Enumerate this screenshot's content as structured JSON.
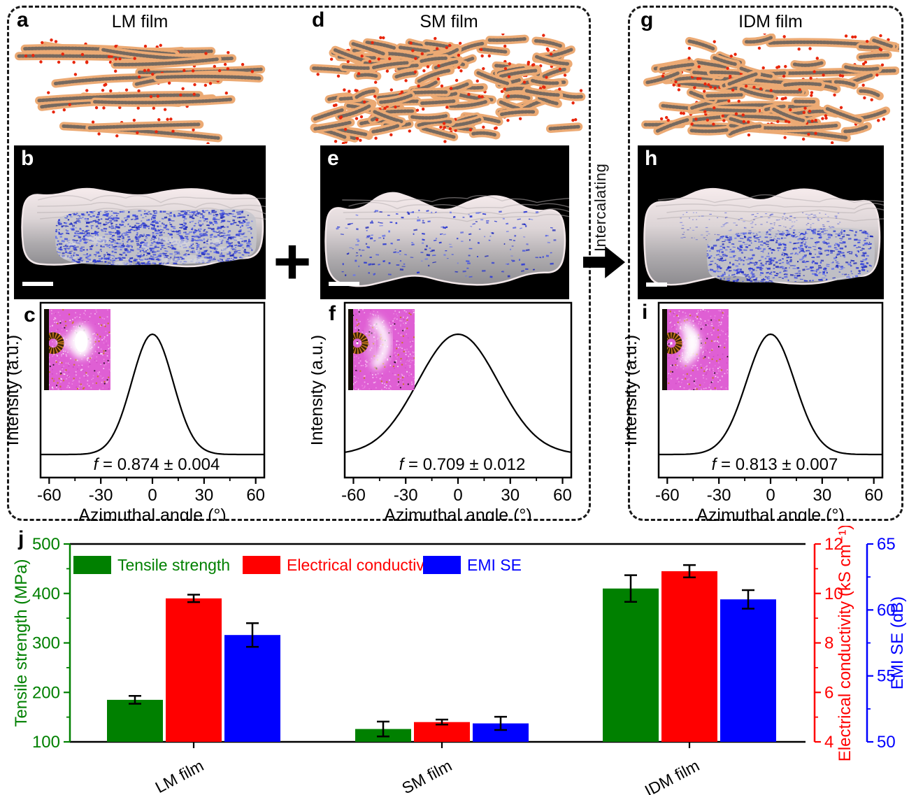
{
  "figure": {
    "plus_sign": "+",
    "arrow_label": "Intercalating"
  },
  "schematic_panels": [
    {
      "id": "a",
      "label": "a",
      "title": "LM film",
      "flake_type": "long"
    },
    {
      "id": "d",
      "label": "d",
      "title": "SM film",
      "flake_type": "short"
    },
    {
      "id": "g",
      "label": "g",
      "title": "IDM film",
      "flake_type": "mixed"
    }
  ],
  "tomography_panels": [
    {
      "id": "b",
      "label": "b",
      "style": "dense_cross_section"
    },
    {
      "id": "e",
      "label": "e",
      "style": "sparse_speckle"
    },
    {
      "id": "h",
      "label": "h",
      "style": "medium_speckle"
    }
  ],
  "colors": {
    "flake_body": "#ecaa74",
    "flake_core": "#76695f",
    "flake_dot": "#e8260c",
    "speckle_blue": "#3340d6",
    "tensile_green": "#008000",
    "conductivity_red": "#ff0000",
    "emi_blue": "#0000ff"
  },
  "chart_data": [
    {
      "type": "line",
      "panel": "c",
      "xlabel": "Azimuthal angle (°)",
      "ylabel": "Intensity (a.u.)",
      "xlim": [
        -65,
        65
      ],
      "xticks": [
        -60,
        -30,
        0,
        30,
        60
      ],
      "peak": {
        "shape": "gaussian",
        "center": 0,
        "sigma_deg": 12
      },
      "annotation": "f = 0.874 ± 0.004",
      "inset": "waxs_spot"
    },
    {
      "type": "line",
      "panel": "f",
      "xlabel": "Azimuthal angle (°)",
      "ylabel": "Intensity (a.u.)",
      "xlim": [
        -65,
        65
      ],
      "xticks": [
        -60,
        -30,
        0,
        30,
        60
      ],
      "peak": {
        "shape": "gaussian",
        "center": 0,
        "sigma_deg": 23
      },
      "annotation": "f = 0.709 ± 0.012",
      "inset": "waxs_arc"
    },
    {
      "type": "line",
      "panel": "i",
      "xlabel": "Azimuthal angle (°)",
      "ylabel": "Intensity (a.u.)",
      "xlim": [
        -65,
        65
      ],
      "xticks": [
        -60,
        -30,
        0,
        30,
        60
      ],
      "peak": {
        "shape": "gaussian",
        "center": 0,
        "sigma_deg": 14
      },
      "annotation": "f = 0.813 ± 0.007",
      "inset": "waxs_arc_small"
    },
    {
      "type": "bar",
      "panel": "j",
      "categories": [
        "LM film",
        "SM film",
        "IDM film"
      ],
      "series": [
        {
          "name": "Tensile strength",
          "axis": "left",
          "color": "#008000",
          "values": [
            185,
            126,
            410
          ],
          "errors": [
            8,
            15,
            27
          ]
        },
        {
          "name": "Electrical conductivity",
          "axis": "right1",
          "color": "#ff0000",
          "values": [
            9.8,
            4.8,
            10.9
          ],
          "errors": [
            0.15,
            0.1,
            0.25
          ]
        },
        {
          "name": "EMI SE",
          "axis": "right2",
          "color": "#0000ff",
          "values": [
            58.1,
            51.4,
            60.8
          ],
          "errors": [
            0.9,
            0.5,
            0.7
          ]
        }
      ],
      "axes": {
        "left": {
          "label": "Tensile strength (MPa)",
          "color": "#008000",
          "min": 100,
          "max": 500,
          "ticks": [
            100,
            200,
            300,
            400,
            500
          ],
          "minor_step": 50
        },
        "right1": {
          "label": "Electrical conductivity (kS cm⁻¹)",
          "color": "#ff0000",
          "min": 4,
          "max": 12,
          "ticks": [
            4,
            6,
            8,
            10,
            12
          ],
          "minor_step": 1
        },
        "right2": {
          "label": "EMI SE (dB)",
          "color": "#0000ff",
          "min": 50,
          "max": 65,
          "ticks": [
            50,
            55,
            60,
            65
          ],
          "minor_step": 2.5
        }
      },
      "legend": {
        "entries": [
          "Tensile strength",
          "Electrical conductivity",
          "EMI SE"
        ]
      },
      "panel_label": "j"
    }
  ]
}
